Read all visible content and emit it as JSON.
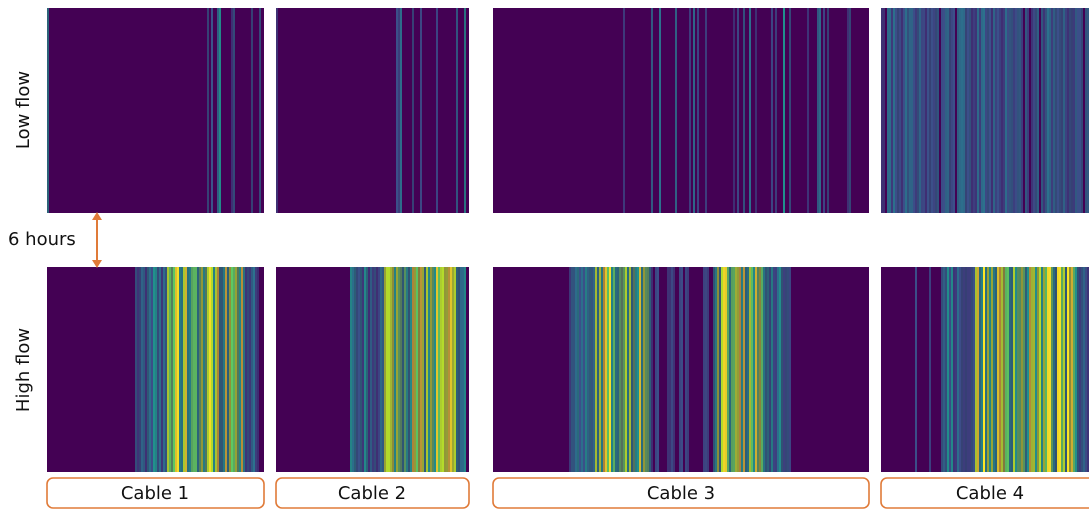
{
  "rows": [
    {
      "label": "Low flow"
    },
    {
      "label": "High flow"
    }
  ],
  "interval": "6 hours",
  "cables": [
    {
      "label": "Cable 1"
    },
    {
      "label": "Cable 2"
    },
    {
      "label": "Cable 3"
    },
    {
      "label": "Cable 4"
    }
  ]
}
